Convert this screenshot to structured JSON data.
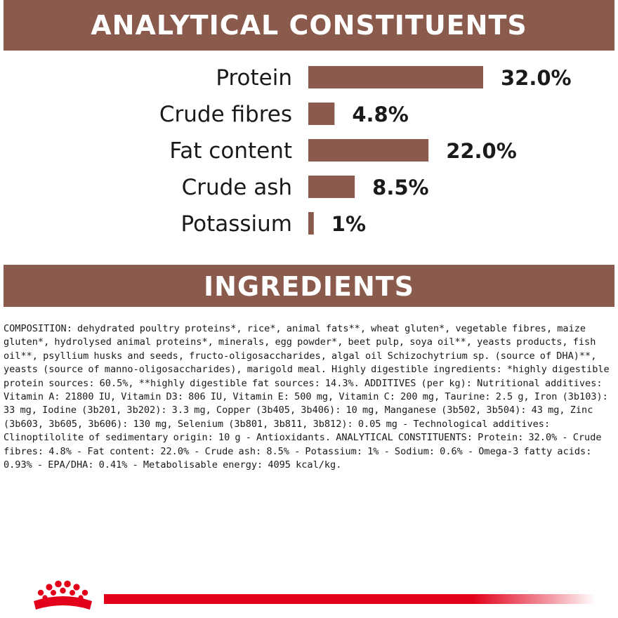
{
  "colors": {
    "banner_bg": "#8a5a4c",
    "banner_text": "#ffffff",
    "bar": "#8a5a4c",
    "brand_red": "#e2001a"
  },
  "analytical": {
    "heading": "ANALYTICAL CONSTITUENTS"
  },
  "chart_data": {
    "type": "bar",
    "orientation": "horizontal",
    "categories": [
      "Protein",
      "Crude fibres",
      "Fat content",
      "Crude ash",
      "Potassium"
    ],
    "values": [
      32.0,
      4.8,
      22.0,
      8.5,
      1
    ],
    "value_labels": [
      "32.0%",
      "4.8%",
      "22.0%",
      "8.5%",
      "1%"
    ],
    "xlim": [
      0,
      32.0
    ],
    "grid": false,
    "legend": "none"
  },
  "ingredients": {
    "heading": "INGREDIENTS",
    "composition": "COMPOSITION: dehydrated poultry proteins*, rice*, animal fats**, wheat gluten*, vegetable fibres, maize gluten*, hydrolysed animal proteins*, minerals, egg powder*, beet pulp, soya oil**, yeasts products, fish oil**, psyllium husks and seeds, fructo-oligosaccharides, algal oil Schizochytrium sp. (source of DHA)**, yeasts (source of manno-oligosaccharides), marigold meal. Highly digestible ingredients: *highly digestible protein sources: 60.5%, **highly digestible fat sources: 14.3%. ADDITIVES (per kg): Nutritional additives: Vitamin A: 21800 IU, Vitamin D3: 806 IU, Vitamin E: 500 mg, Vitamin C: 200 mg, Taurine: 2.5 g, Iron (3b103): 33 mg, Iodine (3b201, 3b202): 3.3 mg, Copper (3b405, 3b406): 10 mg, Manganese (3b502, 3b504): 43 mg, Zinc (3b603, 3b605, 3b606): 130 mg, Selenium (3b801, 3b811, 3b812): 0.05 mg - Technological additives: Clinoptilolite of sedimentary origin: 10 g - Antioxidants. ANALYTICAL CONSTITUENTS: Protein: 32.0% - Crude fibres: 4.8% - Fat content: 22.0% - Crude ash: 8.5% - Potassium: 1% - Sodium: 0.6% - Omega-3 fatty acids: 0.93% - EPA/DHA: 0.41% - Metabolisable energy: 4095 kcal/kg."
  },
  "footer": {
    "logo_icon": "royal-canin-crown-icon"
  }
}
